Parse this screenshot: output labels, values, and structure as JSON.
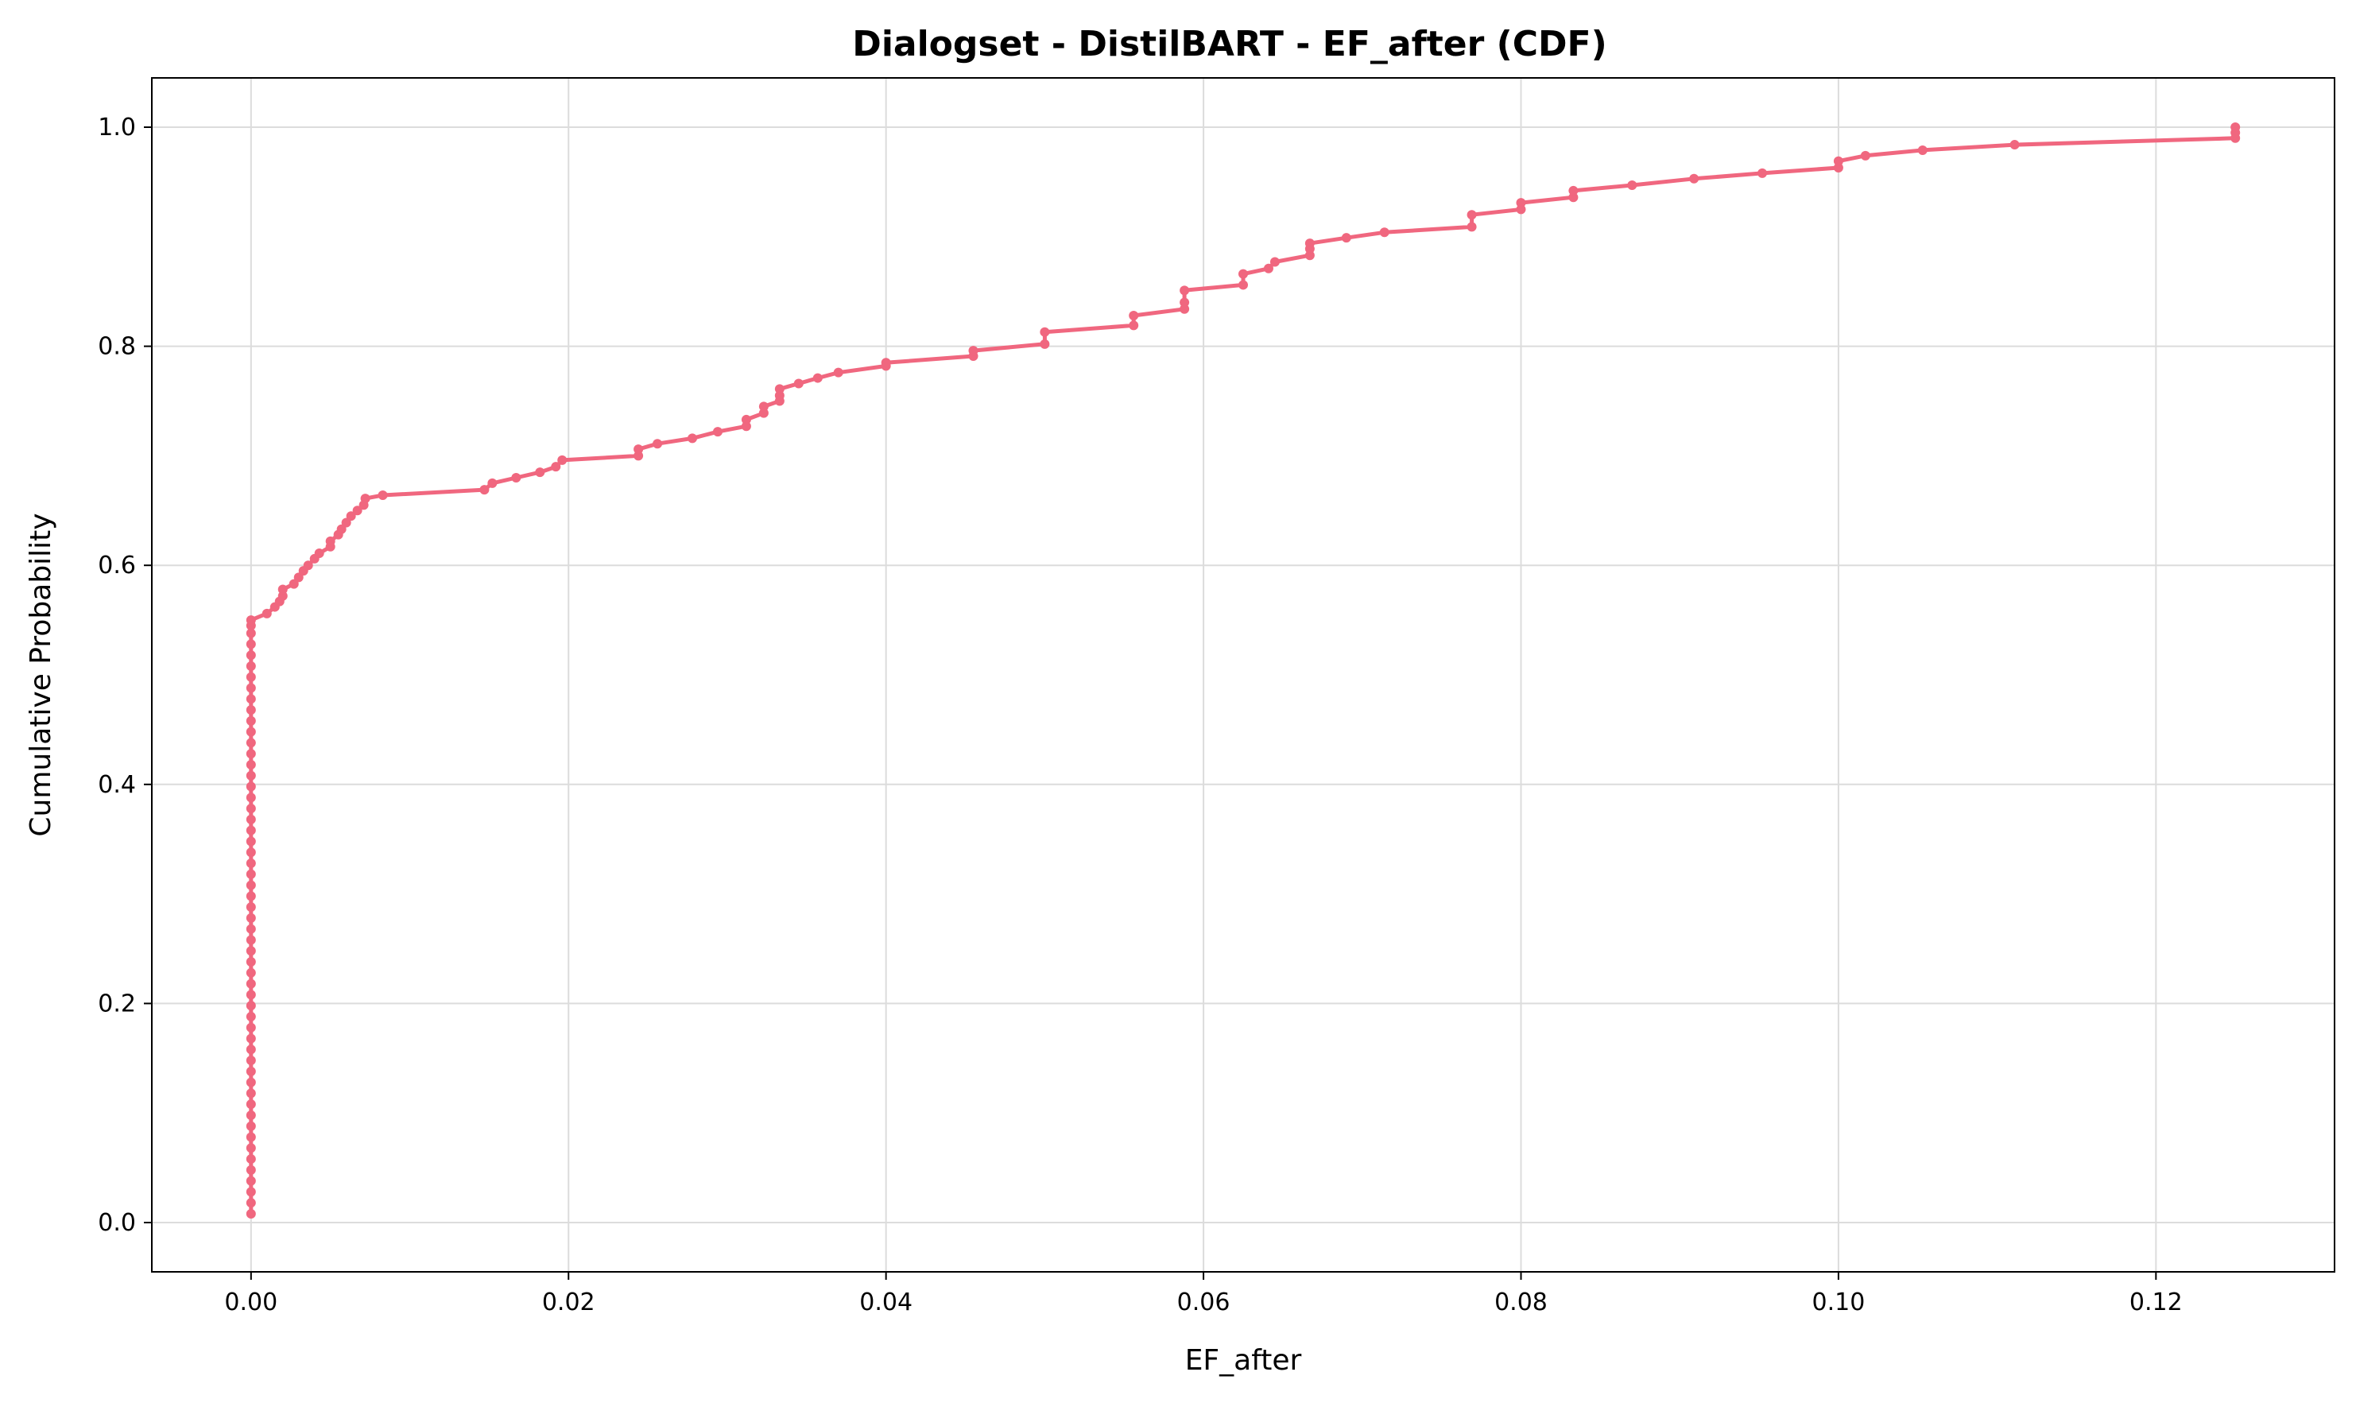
{
  "chart_data": {
    "type": "line",
    "title": "Dialogset - DistilBART - EF_after (CDF)",
    "xlabel": "EF_after",
    "ylabel": "Cumulative Probability",
    "xlim": [
      -0.00625,
      0.13125
    ],
    "ylim": [
      -0.045,
      1.045
    ],
    "xticks": [
      0.0,
      0.02,
      0.04,
      0.06,
      0.08,
      0.1,
      0.12
    ],
    "xtick_labels": [
      "0.00",
      "0.02",
      "0.04",
      "0.06",
      "0.08",
      "0.10",
      "0.12"
    ],
    "yticks": [
      0.0,
      0.2,
      0.4,
      0.6,
      0.8,
      1.0
    ],
    "ytick_labels": [
      "0.0",
      "0.2",
      "0.4",
      "0.6",
      "0.8",
      "1.0"
    ],
    "grid": true,
    "legend": "none",
    "color": "#f0677f",
    "series": [
      {
        "x": [
          0.0,
          0.0,
          0.0,
          0.0,
          0.0,
          0.0,
          0.0,
          0.0,
          0.0,
          0.0,
          0.0,
          0.0,
          0.0,
          0.0,
          0.0,
          0.0,
          0.0,
          0.0,
          0.0,
          0.0,
          0.0,
          0.0,
          0.0,
          0.0,
          0.0,
          0.0,
          0.0,
          0.0,
          0.0,
          0.0,
          0.0,
          0.0,
          0.0,
          0.0,
          0.0,
          0.0,
          0.0,
          0.0,
          0.0,
          0.0,
          0.0,
          0.0,
          0.0,
          0.0,
          0.0,
          0.0,
          0.0,
          0.0,
          0.0,
          0.0,
          0.0,
          0.0,
          0.0,
          0.0,
          0.0,
          0.0,
          0.001,
          0.0015,
          0.0018,
          0.002,
          0.002,
          0.0027,
          0.003,
          0.0033,
          0.0036,
          0.004,
          0.0043,
          0.005,
          0.005,
          0.0055,
          0.0057,
          0.006,
          0.0063,
          0.0067,
          0.0071,
          0.0072,
          0.0083,
          0.0147,
          0.0152,
          0.0167,
          0.0182,
          0.0192,
          0.0196,
          0.0244,
          0.0244,
          0.0256,
          0.0278,
          0.0294,
          0.0312,
          0.0312,
          0.0323,
          0.0323,
          0.0333,
          0.0333,
          0.0333,
          0.0345,
          0.0357,
          0.037,
          0.04,
          0.04,
          0.0455,
          0.0455,
          0.05,
          0.05,
          0.0556,
          0.0556,
          0.0588,
          0.0588,
          0.0588,
          0.0625,
          0.0625,
          0.0641,
          0.0645,
          0.0667,
          0.0667,
          0.0667,
          0.069,
          0.0714,
          0.0769,
          0.0769,
          0.08,
          0.08,
          0.0833,
          0.0833,
          0.087,
          0.0909,
          0.0952,
          0.1,
          0.1,
          0.1017,
          0.1053,
          0.1111,
          0.125,
          0.125,
          0.125
        ],
        "y": [
          0.008,
          0.018,
          0.028,
          0.038,
          0.048,
          0.058,
          0.068,
          0.078,
          0.088,
          0.098,
          0.108,
          0.118,
          0.128,
          0.138,
          0.148,
          0.158,
          0.168,
          0.178,
          0.188,
          0.198,
          0.208,
          0.218,
          0.228,
          0.238,
          0.248,
          0.258,
          0.268,
          0.278,
          0.288,
          0.298,
          0.308,
          0.318,
          0.328,
          0.338,
          0.348,
          0.358,
          0.368,
          0.378,
          0.388,
          0.398,
          0.408,
          0.418,
          0.428,
          0.438,
          0.448,
          0.458,
          0.468,
          0.478,
          0.488,
          0.498,
          0.508,
          0.518,
          0.528,
          0.538,
          0.545,
          0.55,
          0.556,
          0.562,
          0.567,
          0.572,
          0.578,
          0.583,
          0.589,
          0.595,
          0.6,
          0.606,
          0.611,
          0.617,
          0.622,
          0.628,
          0.633,
          0.639,
          0.645,
          0.65,
          0.655,
          0.661,
          0.664,
          0.669,
          0.675,
          0.68,
          0.685,
          0.69,
          0.696,
          0.7,
          0.706,
          0.711,
          0.716,
          0.722,
          0.727,
          0.733,
          0.739,
          0.745,
          0.75,
          0.755,
          0.761,
          0.766,
          0.771,
          0.776,
          0.782,
          0.785,
          0.791,
          0.796,
          0.802,
          0.813,
          0.819,
          0.828,
          0.834,
          0.84,
          0.851,
          0.856,
          0.866,
          0.871,
          0.877,
          0.883,
          0.889,
          0.894,
          0.899,
          0.904,
          0.909,
          0.92,
          0.925,
          0.931,
          0.936,
          0.942,
          0.947,
          0.953,
          0.958,
          0.963,
          0.969,
          0.974,
          0.979,
          0.984,
          0.99,
          0.995,
          1.0
        ]
      }
    ]
  }
}
